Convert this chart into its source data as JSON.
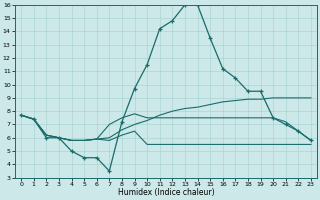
{
  "xlabel": "Humidex (Indice chaleur)",
  "bg_color": "#cce8e8",
  "grid_color": "#aad4d4",
  "line_color": "#1a6b6b",
  "xlim": [
    -0.5,
    23.5
  ],
  "ylim": [
    3,
    16
  ],
  "xticks": [
    0,
    1,
    2,
    3,
    4,
    5,
    6,
    7,
    8,
    9,
    10,
    11,
    12,
    13,
    14,
    15,
    16,
    17,
    18,
    19,
    20,
    21,
    22,
    23
  ],
  "yticks": [
    3,
    4,
    5,
    6,
    7,
    8,
    9,
    10,
    11,
    12,
    13,
    14,
    15,
    16
  ],
  "line1_x": [
    0,
    1,
    2,
    3,
    4,
    5,
    6,
    7,
    8,
    9,
    10,
    11,
    12,
    13,
    14,
    15,
    16,
    17,
    18,
    19,
    20,
    21,
    22,
    23
  ],
  "line1_y": [
    7.7,
    7.4,
    6.0,
    6.0,
    5.0,
    4.5,
    4.5,
    3.5,
    7.2,
    9.7,
    11.5,
    14.2,
    14.8,
    16.0,
    16.0,
    13.5,
    11.2,
    10.5,
    9.5,
    9.5,
    7.5,
    7.0,
    6.5,
    5.8
  ],
  "line2_x": [
    0,
    1,
    2,
    3,
    4,
    5,
    6,
    7,
    8,
    9,
    10,
    11,
    12,
    13,
    14,
    15,
    16,
    17,
    18,
    19,
    20,
    21,
    22,
    23
  ],
  "line2_y": [
    7.7,
    7.4,
    6.2,
    6.0,
    5.8,
    5.8,
    5.9,
    6.0,
    6.6,
    7.0,
    7.3,
    7.7,
    8.0,
    8.2,
    8.3,
    8.5,
    8.7,
    8.8,
    8.9,
    8.9,
    9.0,
    9.0,
    9.0,
    9.0
  ],
  "line3_x": [
    0,
    1,
    2,
    3,
    4,
    5,
    6,
    7,
    8,
    9,
    10,
    11,
    12,
    13,
    14,
    15,
    16,
    17,
    18,
    19,
    20,
    21,
    22,
    23
  ],
  "line3_y": [
    7.7,
    7.4,
    6.2,
    6.0,
    5.8,
    5.8,
    5.9,
    7.0,
    7.5,
    7.8,
    7.5,
    7.5,
    7.5,
    7.5,
    7.5,
    7.5,
    7.5,
    7.5,
    7.5,
    7.5,
    7.5,
    7.2,
    6.5,
    5.8
  ],
  "line4_x": [
    0,
    1,
    2,
    3,
    4,
    5,
    6,
    7,
    8,
    9,
    10,
    11,
    12,
    13,
    14,
    15,
    16,
    17,
    18,
    19,
    20,
    21,
    22,
    23
  ],
  "line4_y": [
    7.7,
    7.4,
    6.2,
    6.0,
    5.8,
    5.8,
    5.9,
    5.8,
    6.2,
    6.5,
    5.5,
    5.5,
    5.5,
    5.5,
    5.5,
    5.5,
    5.5,
    5.5,
    5.5,
    5.5,
    5.5,
    5.5,
    5.5,
    5.5
  ]
}
